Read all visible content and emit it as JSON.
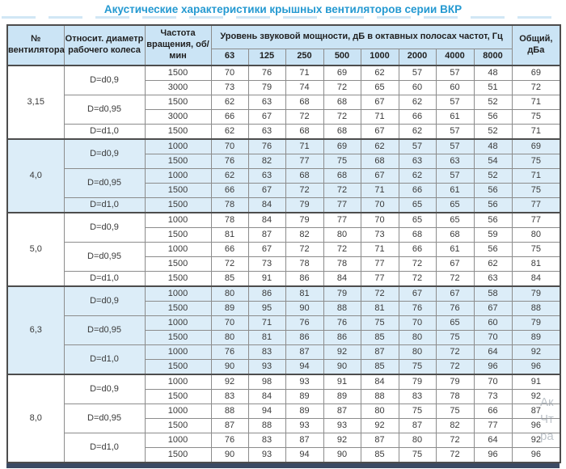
{
  "title": "Акустические характеристики крышных вентиляторов серии ВКР",
  "colors": {
    "title": "#2499d1",
    "header_bg": "#cbe4f5",
    "tint_bg": "#dcedf8",
    "bottom_bar": "#3b4a63"
  },
  "watermark": {
    "fragments": [
      "Ак",
      "Чт",
      "ра"
    ]
  },
  "table": {
    "header": {
      "fan": "№ вентилятора",
      "diameter": "Относит. диаметр рабочего колеса",
      "rpm": "Частота вращения, об/мин",
      "spl": "Уровень звуковой мощности, дБ в октавных полосах частот, Гц",
      "frequencies": [
        "63",
        "125",
        "250",
        "500",
        "1000",
        "2000",
        "4000",
        "8000"
      ],
      "total": "Общий, дБа"
    },
    "groups": [
      {
        "fan": "3,15",
        "tinted": false,
        "subgroups": [
          {
            "diameter": "D=d0,9",
            "rows": [
              {
                "rpm": "1500",
                "values": [
                  70,
                  76,
                  71,
                  69,
                  62,
                  57,
                  57,
                  48
                ],
                "total": 69
              },
              {
                "rpm": "3000",
                "values": [
                  73,
                  79,
                  74,
                  72,
                  65,
                  60,
                  60,
                  51
                ],
                "total": 72
              }
            ]
          },
          {
            "diameter": "D=d0,95",
            "rows": [
              {
                "rpm": "1500",
                "values": [
                  62,
                  63,
                  68,
                  68,
                  67,
                  62,
                  57,
                  52
                ],
                "total": 71
              },
              {
                "rpm": "3000",
                "values": [
                  66,
                  67,
                  72,
                  72,
                  71,
                  66,
                  61,
                  56
                ],
                "total": 75
              }
            ]
          },
          {
            "diameter": "D=d1,0",
            "rows": [
              {
                "rpm": "1500",
                "values": [
                  62,
                  63,
                  68,
                  68,
                  67,
                  62,
                  57,
                  52
                ],
                "total": 71
              }
            ]
          }
        ]
      },
      {
        "fan": "4,0",
        "tinted": true,
        "subgroups": [
          {
            "diameter": "D=d0,9",
            "rows": [
              {
                "rpm": "1000",
                "values": [
                  70,
                  76,
                  71,
                  69,
                  62,
                  57,
                  57,
                  48
                ],
                "total": 69
              },
              {
                "rpm": "1500",
                "values": [
                  76,
                  82,
                  77,
                  75,
                  68,
                  63,
                  63,
                  54
                ],
                "total": 75
              }
            ]
          },
          {
            "diameter": "D=d0,95",
            "rows": [
              {
                "rpm": "1000",
                "values": [
                  62,
                  63,
                  68,
                  68,
                  67,
                  62,
                  57,
                  52
                ],
                "total": 71
              },
              {
                "rpm": "1500",
                "values": [
                  66,
                  67,
                  72,
                  72,
                  71,
                  66,
                  61,
                  56
                ],
                "total": 75
              }
            ]
          },
          {
            "diameter": "D=d1,0",
            "rows": [
              {
                "rpm": "1500",
                "values": [
                  78,
                  84,
                  79,
                  77,
                  70,
                  65,
                  65,
                  56
                ],
                "total": 77
              }
            ]
          }
        ]
      },
      {
        "fan": "5,0",
        "tinted": false,
        "subgroups": [
          {
            "diameter": "D=d0,9",
            "rows": [
              {
                "rpm": "1000",
                "values": [
                  78,
                  84,
                  79,
                  77,
                  70,
                  65,
                  65,
                  56
                ],
                "total": 77
              },
              {
                "rpm": "1500",
                "values": [
                  81,
                  87,
                  82,
                  80,
                  73,
                  68,
                  68,
                  59
                ],
                "total": 80
              }
            ]
          },
          {
            "diameter": "D=d0,95",
            "rows": [
              {
                "rpm": "1000",
                "values": [
                  66,
                  67,
                  72,
                  72,
                  71,
                  66,
                  61,
                  56
                ],
                "total": 75
              },
              {
                "rpm": "1500",
                "values": [
                  72,
                  73,
                  78,
                  78,
                  77,
                  72,
                  67,
                  62
                ],
                "total": 81
              }
            ]
          },
          {
            "diameter": "D=d1,0",
            "rows": [
              {
                "rpm": "1500",
                "values": [
                  85,
                  91,
                  86,
                  84,
                  77,
                  72,
                  72,
                  63
                ],
                "total": 84
              }
            ]
          }
        ]
      },
      {
        "fan": "6,3",
        "tinted": true,
        "subgroups": [
          {
            "diameter": "D=d0,9",
            "rows": [
              {
                "rpm": "1000",
                "values": [
                  80,
                  86,
                  81,
                  79,
                  72,
                  67,
                  67,
                  58
                ],
                "total": 79
              },
              {
                "rpm": "1500",
                "values": [
                  89,
                  95,
                  90,
                  88,
                  81,
                  76,
                  76,
                  67
                ],
                "total": 88
              }
            ]
          },
          {
            "diameter": "D=d0,95",
            "rows": [
              {
                "rpm": "1000",
                "values": [
                  70,
                  71,
                  76,
                  76,
                  75,
                  70,
                  65,
                  60
                ],
                "total": 79
              },
              {
                "rpm": "1500",
                "values": [
                  80,
                  81,
                  86,
                  86,
                  85,
                  80,
                  75,
                  70
                ],
                "total": 89
              }
            ]
          },
          {
            "diameter": "D=d1,0",
            "rows": [
              {
                "rpm": "1000",
                "values": [
                  76,
                  83,
                  87,
                  92,
                  87,
                  80,
                  72,
                  64
                ],
                "total": 92
              },
              {
                "rpm": "1500",
                "values": [
                  90,
                  93,
                  94,
                  90,
                  85,
                  75,
                  72,
                  96
                ],
                "total": 96
              }
            ]
          }
        ]
      },
      {
        "fan": "8,0",
        "tinted": false,
        "subgroups": [
          {
            "diameter": "D=d0,9",
            "rows": [
              {
                "rpm": "1000",
                "values": [
                  92,
                  98,
                  93,
                  91,
                  84,
                  79,
                  79,
                  70
                ],
                "total": 91
              },
              {
                "rpm": "1500",
                "values": [
                  83,
                  84,
                  89,
                  89,
                  88,
                  83,
                  78,
                  73
                ],
                "total": 92
              }
            ]
          },
          {
            "diameter": "D=d0,95",
            "rows": [
              {
                "rpm": "1000",
                "values": [
                  88,
                  94,
                  89,
                  87,
                  80,
                  75,
                  75,
                  66
                ],
                "total": 87
              },
              {
                "rpm": "1500",
                "values": [
                  87,
                  88,
                  93,
                  93,
                  92,
                  87,
                  82,
                  77
                ],
                "total": 96
              }
            ]
          },
          {
            "diameter": "D=d1,0",
            "rows": [
              {
                "rpm": "1000",
                "values": [
                  76,
                  83,
                  87,
                  92,
                  87,
                  80,
                  72,
                  64
                ],
                "total": 92
              },
              {
                "rpm": "1500",
                "values": [
                  90,
                  93,
                  94,
                  90,
                  85,
                  75,
                  72,
                  96
                ],
                "total": 96
              }
            ]
          }
        ]
      }
    ]
  }
}
